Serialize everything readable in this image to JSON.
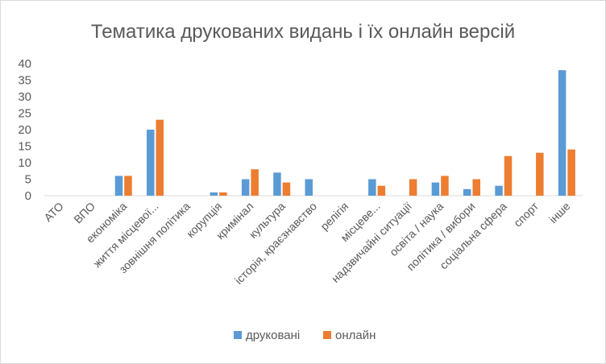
{
  "chart_data": {
    "type": "bar",
    "title": "Тематика друкованих видань і їх онлайн версій",
    "categories": [
      "АТО",
      "ВПО",
      "економіка",
      "життя місцевої...",
      "зовнішня політика",
      "корупція",
      "кримінал",
      "культура",
      "історія, краєзнавство",
      "релігія",
      "місцеве...",
      "надзвичайні ситуації",
      "освіта / наука",
      "політика / вибори",
      "соціальна сфера",
      "спорт",
      "інше"
    ],
    "series": [
      {
        "name": "друковані",
        "color": "#5b9bd5",
        "values": [
          0,
          0,
          6,
          20,
          0,
          1,
          5,
          7,
          5,
          0,
          5,
          0,
          4,
          2,
          3,
          0,
          38
        ]
      },
      {
        "name": "онлайн",
        "color": "#ed7d31",
        "values": [
          0,
          0,
          6,
          23,
          0,
          1,
          8,
          4,
          0,
          0,
          3,
          5,
          6,
          5,
          12,
          13,
          14
        ]
      }
    ],
    "ylim": [
      0,
      40
    ],
    "yticks": [
      0,
      5,
      10,
      15,
      20,
      25,
      30,
      35,
      40
    ],
    "grid": false,
    "legend": "bottom"
  }
}
